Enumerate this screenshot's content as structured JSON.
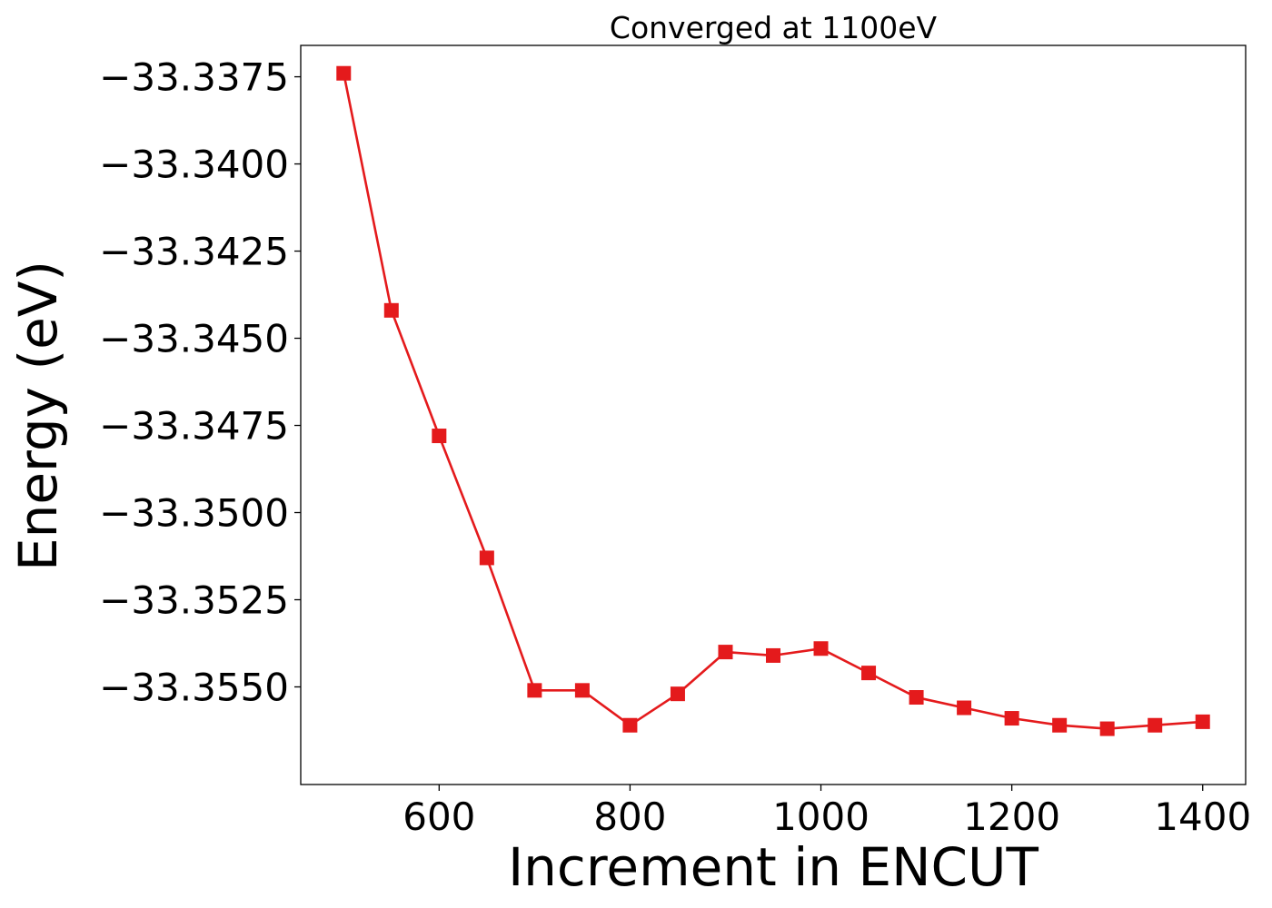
{
  "chart_data": {
    "type": "line",
    "title": "Converged at 1100eV",
    "xlabel": "Increment in ENCUT",
    "ylabel": "Energy (eV)",
    "xlim": [
      455,
      1445
    ],
    "ylim": [
      -33.3578,
      -33.3366
    ],
    "x_ticks": [
      {
        "value": 600,
        "label": "600"
      },
      {
        "value": 800,
        "label": "800"
      },
      {
        "value": 1000,
        "label": "1000"
      },
      {
        "value": 1200,
        "label": "1200"
      },
      {
        "value": 1400,
        "label": "1400"
      }
    ],
    "y_ticks": [
      {
        "value": -33.3375,
        "label": "−33.3375"
      },
      {
        "value": -33.34,
        "label": "−33.3400"
      },
      {
        "value": -33.3425,
        "label": "−33.3425"
      },
      {
        "value": -33.345,
        "label": "−33.3450"
      },
      {
        "value": -33.3475,
        "label": "−33.3475"
      },
      {
        "value": -33.35,
        "label": "−33.3500"
      },
      {
        "value": -33.3525,
        "label": "−33.3525"
      },
      {
        "value": -33.355,
        "label": "−33.3550"
      }
    ],
    "grid": false,
    "series": [
      {
        "color": "#e41a1c",
        "marker": "square",
        "x": [
          500,
          550,
          600,
          650,
          700,
          750,
          800,
          850,
          900,
          950,
          1000,
          1050,
          1100,
          1150,
          1200,
          1250,
          1300,
          1350,
          1400
        ],
        "y": [
          -33.3374,
          -33.3442,
          -33.3478,
          -33.3513,
          -33.3551,
          -33.3551,
          -33.3561,
          -33.3552,
          -33.354,
          -33.3541,
          -33.3539,
          -33.3546,
          -33.3553,
          -33.3556,
          -33.3559,
          -33.3561,
          -33.3562,
          -33.3561,
          -33.356
        ]
      }
    ]
  }
}
